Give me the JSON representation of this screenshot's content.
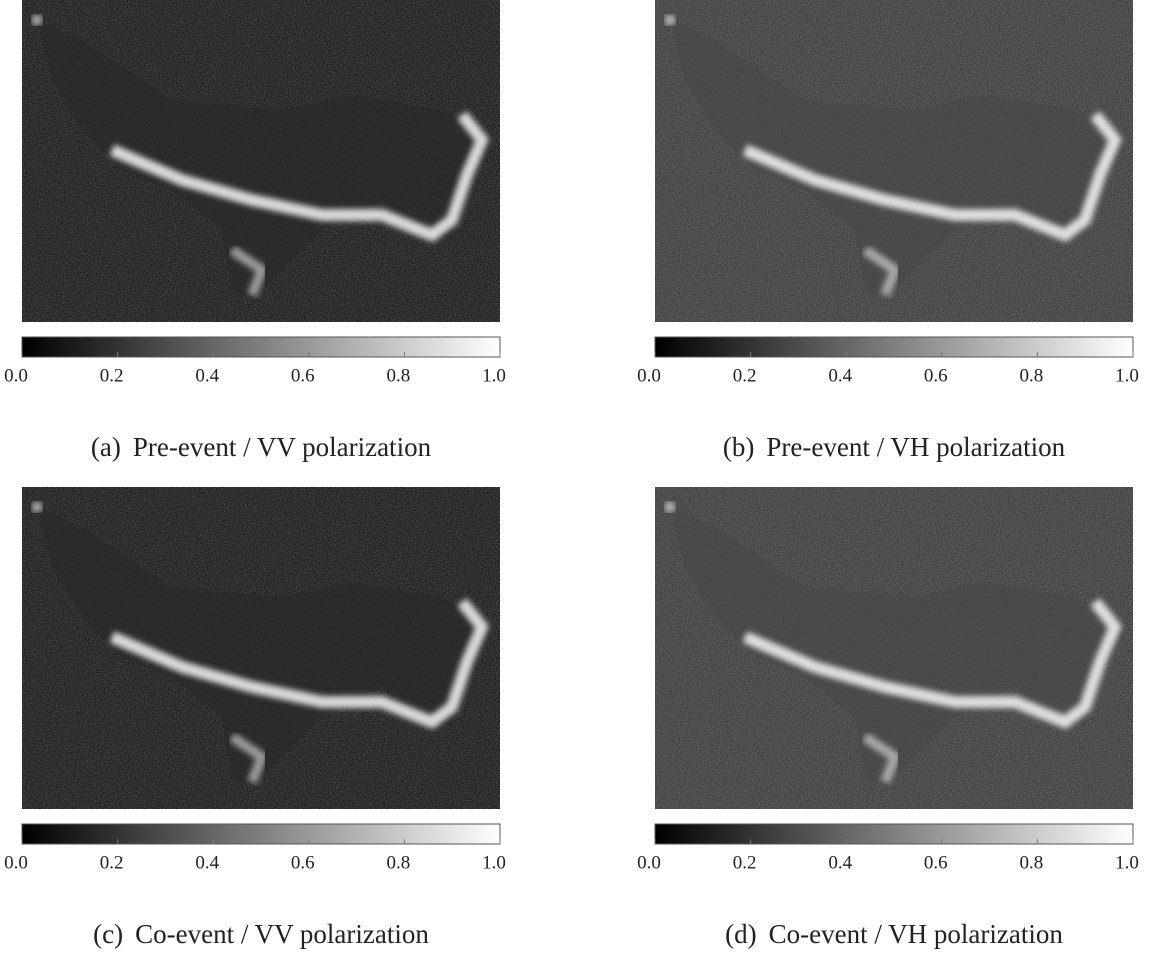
{
  "panels": [
    {
      "label": "(a)",
      "caption": "Pre-event / VV polarization",
      "colorbar": {
        "range": [
          0,
          1
        ],
        "colors": [
          "#000000",
          "#ffffff"
        ],
        "ticks": [
          {
            "value": 0,
            "label": "0.0"
          },
          {
            "value": 0.2,
            "label": "0.2"
          },
          {
            "value": 0.4,
            "label": "0.4"
          },
          {
            "value": 0.6,
            "label": "0.6"
          },
          {
            "value": 0.8,
            "label": "0.8"
          },
          {
            "value": 1,
            "label": "1.0"
          }
        ]
      }
    },
    {
      "label": "(b)",
      "caption": "Pre-event / VH polarization",
      "colorbar": {
        "range": [
          0,
          1
        ],
        "colors": [
          "#000000",
          "#ffffff"
        ],
        "ticks": [
          {
            "value": 0,
            "label": "0.0"
          },
          {
            "value": 0.2,
            "label": "0.2"
          },
          {
            "value": 0.4,
            "label": "0.4"
          },
          {
            "value": 0.6,
            "label": "0.6"
          },
          {
            "value": 0.8,
            "label": "0.8"
          },
          {
            "value": 1,
            "label": "1.0"
          }
        ]
      }
    },
    {
      "label": "(c)",
      "caption": "Co-event / VV polarization",
      "colorbar": {
        "range": [
          0,
          1
        ],
        "colors": [
          "#000000",
          "#ffffff"
        ],
        "ticks": [
          {
            "value": 0,
            "label": "0.0"
          },
          {
            "value": 0.2,
            "label": "0.2"
          },
          {
            "value": 0.4,
            "label": "0.4"
          },
          {
            "value": 0.6,
            "label": "0.6"
          },
          {
            "value": 0.8,
            "label": "0.8"
          },
          {
            "value": 1,
            "label": "1.0"
          }
        ]
      }
    },
    {
      "label": "(d)",
      "caption": "Co-event / VH polarization",
      "colorbar": {
        "range": [
          0,
          1
        ],
        "colors": [
          "#000000",
          "#ffffff"
        ],
        "ticks": [
          {
            "value": 0,
            "label": "0.0"
          },
          {
            "value": 0.2,
            "label": "0.2"
          },
          {
            "value": 0.4,
            "label": "0.4"
          },
          {
            "value": 0.6,
            "label": "0.6"
          },
          {
            "value": 0.8,
            "label": "0.8"
          },
          {
            "value": 1,
            "label": "1.0"
          }
        ]
      }
    }
  ]
}
